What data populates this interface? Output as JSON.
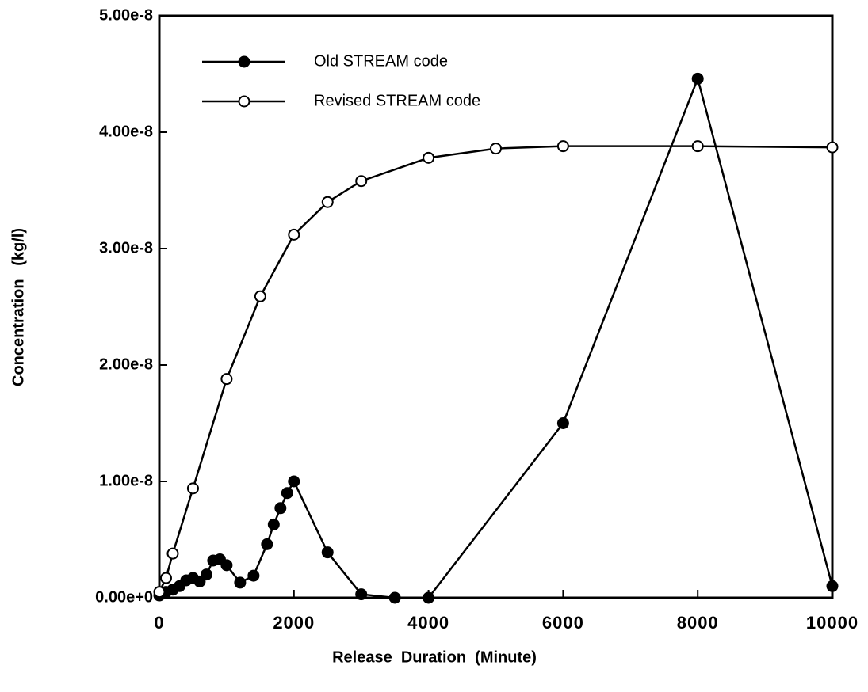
{
  "chart_data": {
    "type": "line",
    "xlabel": "Release  Duration  (Minute)",
    "ylabel": "Concentration   (kg/l)",
    "xlim": [
      0,
      10000
    ],
    "xticks": [
      0,
      2000,
      4000,
      6000,
      8000,
      10000
    ],
    "ylim": [
      0,
      5e-08
    ],
    "yticks": [
      {
        "value": 0,
        "label": "0.00e+0"
      },
      {
        "value": 1e-08,
        "label": "1.00e-8"
      },
      {
        "value": 2e-08,
        "label": "2.00e-8"
      },
      {
        "value": 3e-08,
        "label": "3.00e-8"
      },
      {
        "value": 4e-08,
        "label": "4.00e-8"
      },
      {
        "value": 5e-08,
        "label": "5.00e-8"
      }
    ],
    "legend": "upper left",
    "series": [
      {
        "name": "Old STREAM code",
        "color": "#000000",
        "marker": "filled",
        "x": [
          0,
          100,
          200,
          300,
          400,
          500,
          600,
          700,
          800,
          900,
          1000,
          1200,
          1400,
          1600,
          1700,
          1800,
          1900,
          2000,
          2500,
          3000,
          3500,
          4000,
          6000,
          8000,
          10000
        ],
        "values": [
          2e-10,
          5e-10,
          7e-10,
          1e-09,
          1.5e-09,
          1.7e-09,
          1.4e-09,
          2e-09,
          3.2e-09,
          3.3e-09,
          2.8e-09,
          1.3e-09,
          1.9e-09,
          4.6e-09,
          6.3e-09,
          7.7e-09,
          9e-09,
          1e-08,
          3.9e-09,
          3e-10,
          0,
          0,
          1.5e-08,
          4.46e-08,
          1e-09
        ]
      },
      {
        "name": "Revised STREAM code",
        "color": "#000000",
        "marker": "open",
        "x": [
          0,
          100,
          200,
          500,
          1000,
          1500,
          2000,
          2500,
          3000,
          4000,
          5000,
          6000,
          8000,
          10000
        ],
        "values": [
          5e-10,
          1.7e-09,
          3.8e-09,
          9.4e-09,
          1.88e-08,
          2.59e-08,
          3.12e-08,
          3.4e-08,
          3.58e-08,
          3.78e-08,
          3.86e-08,
          3.88e-08,
          3.88e-08,
          3.87e-08
        ]
      }
    ]
  }
}
